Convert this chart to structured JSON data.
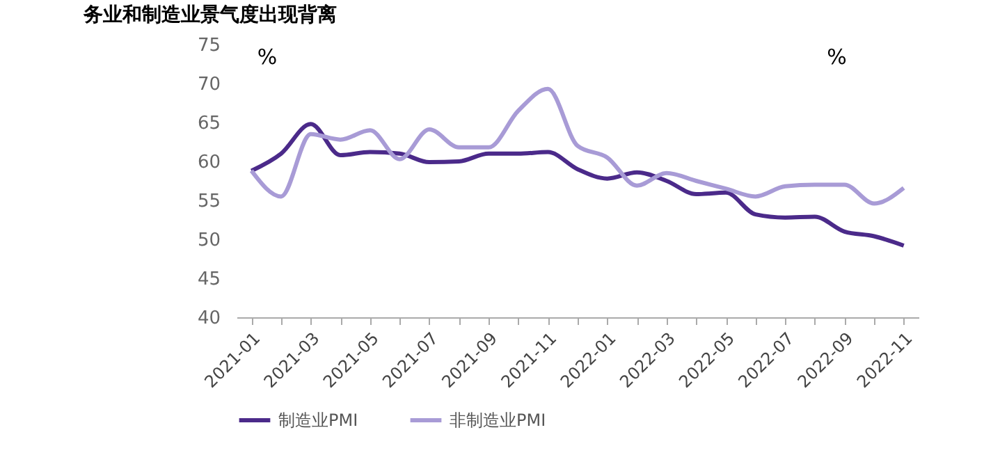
{
  "chart_data": {
    "type": "line",
    "title": "务业和制造业景气度出现背离",
    "ylabel": "%",
    "annotations": [
      "%"
    ],
    "categories": [
      "2021-01",
      null,
      "2021-03",
      null,
      "2021-05",
      null,
      "2021-07",
      null,
      "2021-09",
      null,
      "2021-11",
      null,
      "2022-01",
      null,
      "2022-03",
      null,
      "2022-05",
      null,
      "2022-07",
      null,
      "2022-09",
      null,
      "2022-11"
    ],
    "series": [
      {
        "name": "制造业PMI",
        "color": "#4b2a8a",
        "values": [
          58.8,
          61.0,
          64.8,
          60.8,
          61.2,
          61.0,
          59.9,
          60.0,
          61.0,
          61.0,
          61.2,
          59.0,
          57.8,
          58.6,
          57.5,
          55.8,
          56.0,
          53.2,
          52.8,
          52.9,
          51.0,
          50.4,
          49.2
        ]
      },
      {
        "name": "非制造业PMI",
        "color": "#a89bd6",
        "values": [
          58.8,
          55.5,
          63.5,
          62.8,
          64.0,
          60.3,
          64.1,
          61.8,
          61.8,
          66.5,
          69.3,
          62.0,
          60.5,
          56.9,
          58.5,
          57.5,
          56.5,
          55.5,
          56.8,
          57.0,
          57.0,
          54.6,
          56.6
        ]
      }
    ],
    "ylim": [
      40,
      75
    ],
    "yticks": [
      40,
      45,
      50,
      55,
      60,
      65,
      70,
      75
    ],
    "grid": false,
    "legend": "bottom",
    "marker": "none",
    "line_style": "solid"
  }
}
